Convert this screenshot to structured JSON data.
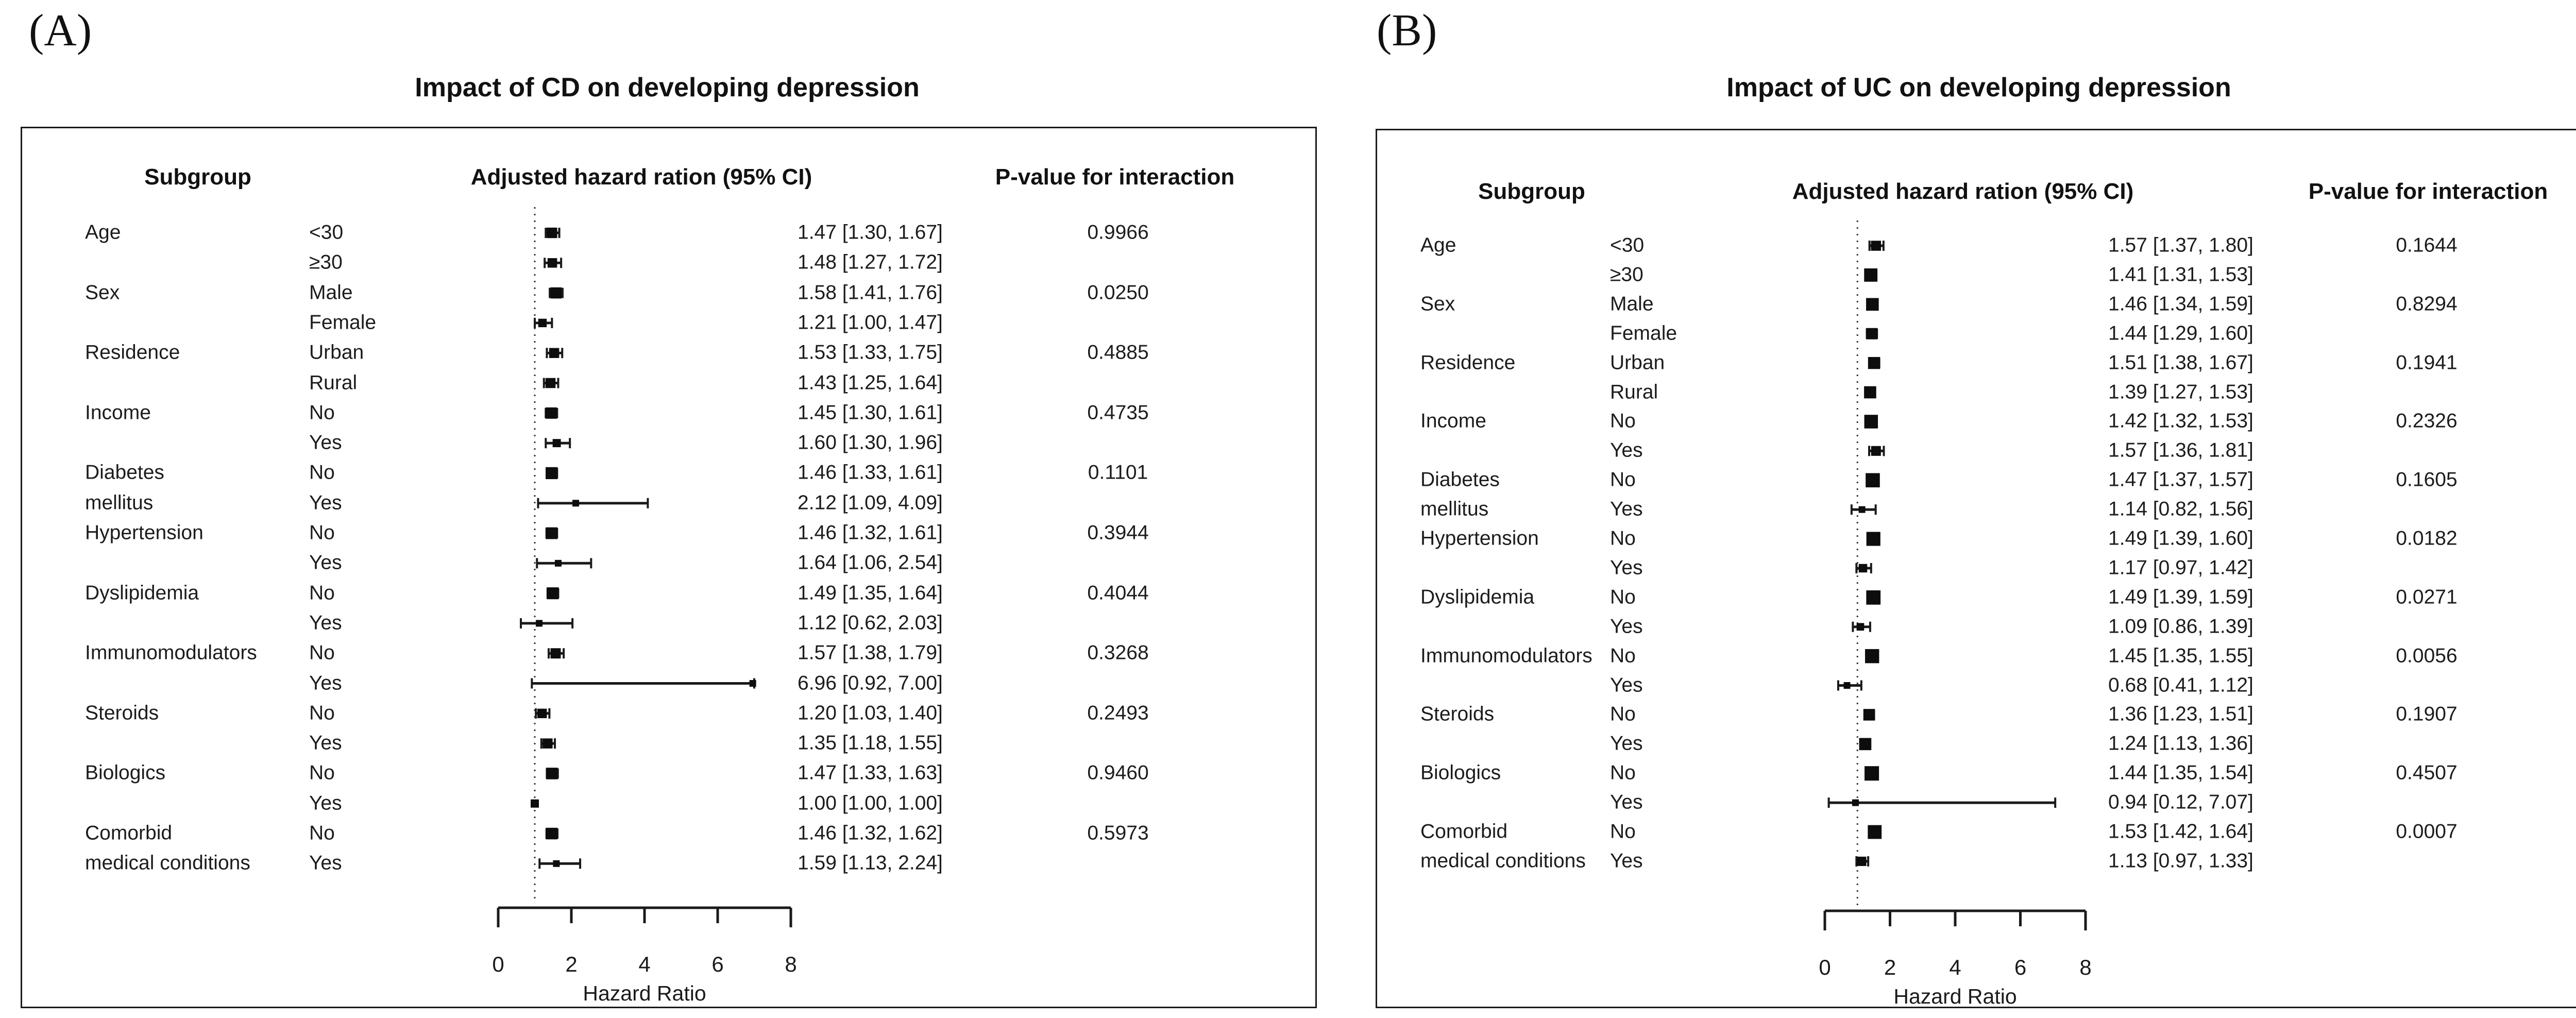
{
  "chart_data": [
    {
      "type": "forest",
      "panel_label": "(A)",
      "title": "Impact of CD on developing depression",
      "columns": {
        "subgroup": "Subgroup",
        "hr": "Adjusted hazard ration (95% CI)",
        "p": "P-value for interaction"
      },
      "xlabel": "Hazard Ratio",
      "x_ticks": [
        "0",
        "2",
        "4",
        "6",
        "8"
      ],
      "xlim": [
        0,
        8
      ],
      "ref_line": 1,
      "rows": [
        {
          "subgroup": "Age",
          "level": "<30",
          "est": 1.47,
          "lo": 1.3,
          "hi": 1.67,
          "text": "1.47 [1.30, 1.67]",
          "p": "0.9966"
        },
        {
          "subgroup": "",
          "level": "≥30",
          "est": 1.48,
          "lo": 1.27,
          "hi": 1.72,
          "text": "1.48 [1.27, 1.72]",
          "p": ""
        },
        {
          "subgroup": "Sex",
          "level": "Male",
          "est": 1.58,
          "lo": 1.41,
          "hi": 1.76,
          "text": "1.58 [1.41, 1.76]",
          "p": "0.0250"
        },
        {
          "subgroup": "",
          "level": "Female",
          "est": 1.21,
          "lo": 1.0,
          "hi": 1.47,
          "text": "1.21 [1.00, 1.47]",
          "p": ""
        },
        {
          "subgroup": "Residence",
          "level": "Urban",
          "est": 1.53,
          "lo": 1.33,
          "hi": 1.75,
          "text": "1.53 [1.33, 1.75]",
          "p": "0.4885"
        },
        {
          "subgroup": "",
          "level": "Rural",
          "est": 1.43,
          "lo": 1.25,
          "hi": 1.64,
          "text": "1.43 [1.25, 1.64]",
          "p": ""
        },
        {
          "subgroup": "Income",
          "level": "No",
          "est": 1.45,
          "lo": 1.3,
          "hi": 1.61,
          "text": "1.45 [1.30, 1.61]",
          "p": "0.4735"
        },
        {
          "subgroup": "",
          "level": "Yes",
          "est": 1.6,
          "lo": 1.3,
          "hi": 1.96,
          "text": "1.60 [1.30, 1.96]",
          "p": ""
        },
        {
          "subgroup": "Diabetes",
          "level": "No",
          "est": 1.46,
          "lo": 1.33,
          "hi": 1.61,
          "text": "1.46 [1.33, 1.61]",
          "p": "0.1101"
        },
        {
          "subgroup": "mellitus",
          "level": "Yes",
          "est": 2.12,
          "lo": 1.09,
          "hi": 4.09,
          "text": "2.12 [1.09, 4.09]",
          "p": ""
        },
        {
          "subgroup": "Hypertension",
          "level": "No",
          "est": 1.46,
          "lo": 1.32,
          "hi": 1.61,
          "text": "1.46 [1.32, 1.61]",
          "p": "0.3944"
        },
        {
          "subgroup": "",
          "level": "Yes",
          "est": 1.64,
          "lo": 1.06,
          "hi": 2.54,
          "text": "1.64 [1.06, 2.54]",
          "p": ""
        },
        {
          "subgroup": "Dyslipidemia",
          "level": "No",
          "est": 1.49,
          "lo": 1.35,
          "hi": 1.64,
          "text": "1.49 [1.35, 1.64]",
          "p": "0.4044"
        },
        {
          "subgroup": "",
          "level": "Yes",
          "est": 1.12,
          "lo": 0.62,
          "hi": 2.03,
          "text": "1.12 [0.62, 2.03]",
          "p": ""
        },
        {
          "subgroup": "Immunomodulators",
          "level": "No",
          "est": 1.57,
          "lo": 1.38,
          "hi": 1.79,
          "text": "1.57 [1.38, 1.79]",
          "p": "0.3268"
        },
        {
          "subgroup": "",
          "level": "Yes",
          "est": 6.96,
          "lo": 0.92,
          "hi": 7.0,
          "text": "6.96 [0.92, 7.00]",
          "p": ""
        },
        {
          "subgroup": "Steroids",
          "level": "No",
          "est": 1.2,
          "lo": 1.03,
          "hi": 1.4,
          "text": "1.20 [1.03, 1.40]",
          "p": "0.2493"
        },
        {
          "subgroup": "",
          "level": "Yes",
          "est": 1.35,
          "lo": 1.18,
          "hi": 1.55,
          "text": "1.35 [1.18, 1.55]",
          "p": ""
        },
        {
          "subgroup": "Biologics",
          "level": "No",
          "est": 1.47,
          "lo": 1.33,
          "hi": 1.63,
          "text": "1.47 [1.33, 1.63]",
          "p": "0.9460"
        },
        {
          "subgroup": "",
          "level": "Yes",
          "est": 1.0,
          "lo": 1.0,
          "hi": 1.0,
          "text": "1.00 [1.00, 1.00]",
          "p": ""
        },
        {
          "subgroup": "Comorbid",
          "level": "No",
          "est": 1.46,
          "lo": 1.32,
          "hi": 1.62,
          "text": "1.46 [1.32, 1.62]",
          "p": "0.5973"
        },
        {
          "subgroup": "medical conditions",
          "level": "Yes",
          "est": 1.59,
          "lo": 1.13,
          "hi": 2.24,
          "text": "1.59 [1.13, 2.24]",
          "p": ""
        }
      ]
    },
    {
      "type": "forest",
      "panel_label": "(B)",
      "title": "Impact of UC on developing depression",
      "columns": {
        "subgroup": "Subgroup",
        "hr": "Adjusted hazard ration (95% CI)",
        "p": "P-value for interaction"
      },
      "xlabel": "Hazard Ratio",
      "x_ticks": [
        "0",
        "2",
        "4",
        "6",
        "8"
      ],
      "xlim": [
        0,
        8
      ],
      "ref_line": 1,
      "rows": [
        {
          "subgroup": "Age",
          "level": "<30",
          "est": 1.57,
          "lo": 1.37,
          "hi": 1.8,
          "text": "1.57 [1.37, 1.80]",
          "p": "0.1644"
        },
        {
          "subgroup": "",
          "level": "≥30",
          "est": 1.41,
          "lo": 1.31,
          "hi": 1.53,
          "text": "1.41 [1.31, 1.53]",
          "p": ""
        },
        {
          "subgroup": "Sex",
          "level": "Male",
          "est": 1.46,
          "lo": 1.34,
          "hi": 1.59,
          "text": "1.46 [1.34, 1.59]",
          "p": "0.8294"
        },
        {
          "subgroup": "",
          "level": "Female",
          "est": 1.44,
          "lo": 1.29,
          "hi": 1.6,
          "text": "1.44 [1.29, 1.60]",
          "p": ""
        },
        {
          "subgroup": "Residence",
          "level": "Urban",
          "est": 1.51,
          "lo": 1.38,
          "hi": 1.67,
          "text": "1.51 [1.38, 1.67]",
          "p": "0.1941"
        },
        {
          "subgroup": "",
          "level": "Rural",
          "est": 1.39,
          "lo": 1.27,
          "hi": 1.53,
          "text": "1.39 [1.27, 1.53]",
          "p": ""
        },
        {
          "subgroup": "Income",
          "level": "No",
          "est": 1.42,
          "lo": 1.32,
          "hi": 1.53,
          "text": "1.42 [1.32, 1.53]",
          "p": "0.2326"
        },
        {
          "subgroup": "",
          "level": "Yes",
          "est": 1.57,
          "lo": 1.36,
          "hi": 1.81,
          "text": "1.57 [1.36, 1.81]",
          "p": ""
        },
        {
          "subgroup": "Diabetes",
          "level": "No",
          "est": 1.47,
          "lo": 1.37,
          "hi": 1.57,
          "text": "1.47 [1.37, 1.57]",
          "p": "0.1605"
        },
        {
          "subgroup": "mellitus",
          "level": "Yes",
          "est": 1.14,
          "lo": 0.82,
          "hi": 1.56,
          "text": "1.14 [0.82, 1.56]",
          "p": ""
        },
        {
          "subgroup": "Hypertension",
          "level": "No",
          "est": 1.49,
          "lo": 1.39,
          "hi": 1.6,
          "text": "1.49 [1.39, 1.60]",
          "p": "0.0182"
        },
        {
          "subgroup": "",
          "level": "Yes",
          "est": 1.17,
          "lo": 0.97,
          "hi": 1.42,
          "text": "1.17 [0.97, 1.42]",
          "p": ""
        },
        {
          "subgroup": "Dyslipidemia",
          "level": "No",
          "est": 1.49,
          "lo": 1.39,
          "hi": 1.59,
          "text": "1.49 [1.39, 1.59]",
          "p": "0.0271"
        },
        {
          "subgroup": "",
          "level": "Yes",
          "est": 1.09,
          "lo": 0.86,
          "hi": 1.39,
          "text": "1.09 [0.86, 1.39]",
          "p": ""
        },
        {
          "subgroup": "Immunomodulators",
          "level": "No",
          "est": 1.45,
          "lo": 1.35,
          "hi": 1.55,
          "text": "1.45 [1.35, 1.55]",
          "p": "0.0056"
        },
        {
          "subgroup": "",
          "level": "Yes",
          "est": 0.68,
          "lo": 0.41,
          "hi": 1.12,
          "text": "0.68 [0.41, 1.12]",
          "p": ""
        },
        {
          "subgroup": "Steroids",
          "level": "No",
          "est": 1.36,
          "lo": 1.23,
          "hi": 1.51,
          "text": "1.36 [1.23, 1.51]",
          "p": "0.1907"
        },
        {
          "subgroup": "",
          "level": "Yes",
          "est": 1.24,
          "lo": 1.13,
          "hi": 1.36,
          "text": "1.24 [1.13, 1.36]",
          "p": ""
        },
        {
          "subgroup": "Biologics",
          "level": "No",
          "est": 1.44,
          "lo": 1.35,
          "hi": 1.54,
          "text": "1.44 [1.35, 1.54]",
          "p": "0.4507"
        },
        {
          "subgroup": "",
          "level": "Yes",
          "est": 0.94,
          "lo": 0.12,
          "hi": 7.07,
          "text": "0.94 [0.12, 7.07]",
          "p": ""
        },
        {
          "subgroup": "Comorbid",
          "level": "No",
          "est": 1.53,
          "lo": 1.42,
          "hi": 1.64,
          "text": "1.53 [1.42, 1.64]",
          "p": "0.0007"
        },
        {
          "subgroup": "medical conditions",
          "level": "Yes",
          "est": 1.13,
          "lo": 0.97,
          "hi": 1.33,
          "text": "1.13 [0.97, 1.33]",
          "p": ""
        }
      ]
    }
  ]
}
